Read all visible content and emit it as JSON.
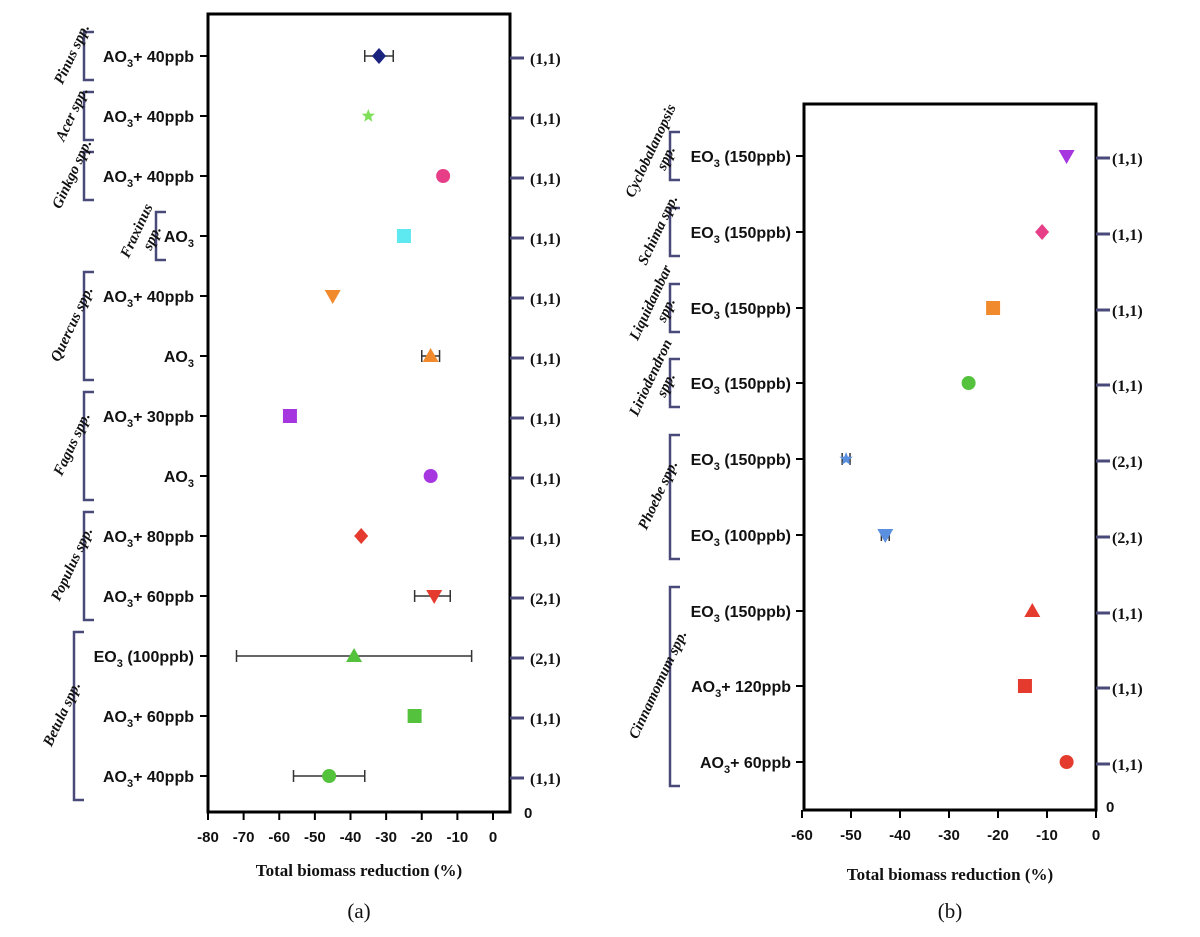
{
  "chart_data": [
    {
      "panel": "(a)",
      "type": "scatter",
      "xlabel": "Total biomass reduction (%)",
      "xlim": [
        -80,
        5
      ],
      "xticks": [
        -80,
        -70,
        -60,
        -50,
        -40,
        -30,
        -20,
        -10,
        0
      ],
      "bottom_right_label": "0",
      "groups": [
        {
          "species": "Pinus spp.",
          "rows": [
            0
          ]
        },
        {
          "species": "Acer spp.",
          "rows": [
            1
          ]
        },
        {
          "species": "Ginkgo spp.",
          "rows": [
            2
          ]
        },
        {
          "species": "Fraxinus spp.",
          "rows": [
            3
          ]
        },
        {
          "species": "Quercus spp.",
          "rows": [
            4,
            5
          ]
        },
        {
          "species": "Fagus spp.",
          "rows": [
            6,
            7
          ]
        },
        {
          "species": "Populus spp.",
          "rows": [
            8,
            9
          ]
        },
        {
          "species": "Betula spp.",
          "rows": [
            10,
            11,
            12
          ]
        }
      ],
      "points": [
        {
          "treatment": "AO₃+ 40ppb",
          "value": -32,
          "err_low": -36,
          "err_high": -28,
          "marker": "diamond",
          "color": "#1a237e",
          "right_label": "(1,1)"
        },
        {
          "treatment": "AO₃+ 40ppb",
          "value": -35,
          "marker": "star",
          "color": "#7fe05a",
          "right_label": "(1,1)"
        },
        {
          "treatment": "AO₃+ 40ppb",
          "value": -14,
          "marker": "circle",
          "color": "#e63e87",
          "right_label": "(1,1)"
        },
        {
          "treatment": "AO₃",
          "value": -25,
          "marker": "square",
          "color": "#5ee8ef",
          "right_label": "(1,1)"
        },
        {
          "treatment": "AO₃+ 40ppb",
          "value": -45,
          "marker": "triangle-down",
          "color": "#f08a2c",
          "right_label": "(1,1)"
        },
        {
          "treatment": "AO₃",
          "value": -17.5,
          "err_low": -20,
          "err_high": -15,
          "marker": "triangle-up",
          "color": "#f08a2c",
          "right_label": "(1,1)"
        },
        {
          "treatment": "AO₃+ 30ppb",
          "value": -57,
          "marker": "square",
          "color": "#a637e0",
          "right_label": "(1,1)"
        },
        {
          "treatment": "AO₃",
          "value": -17.5,
          "marker": "circle",
          "color": "#a637e0",
          "right_label": "(1,1)"
        },
        {
          "treatment": "AO₃+ 80ppb",
          "value": -37,
          "marker": "diamond",
          "color": "#e53b2e",
          "right_label": "(1,1)"
        },
        {
          "treatment": "AO₃+ 60ppb",
          "value": -16.5,
          "err_low": -22,
          "err_high": -12,
          "marker": "triangle-down",
          "color": "#e53b2e",
          "right_label": "(2,1)"
        },
        {
          "treatment": "EO₃ (100ppb)",
          "value": -39,
          "err_low": -72,
          "err_high": -6,
          "marker": "triangle-up",
          "color": "#55c23e",
          "right_label": "(2,1)"
        },
        {
          "treatment": "AO₃+ 60ppb",
          "value": -22,
          "marker": "square",
          "color": "#55c23e",
          "right_label": "(1,1)"
        },
        {
          "treatment": "AO₃+ 40ppb",
          "value": -46,
          "err_low": -56,
          "err_high": -36,
          "marker": "circle",
          "color": "#55c23e",
          "right_label": "(1,1)"
        }
      ]
    },
    {
      "panel": "(b)",
      "type": "scatter",
      "xlabel": "Total biomass reduction (%)",
      "xlim": [
        -60,
        0
      ],
      "xticks": [
        -60,
        -50,
        -40,
        -30,
        -20,
        -10,
        0
      ],
      "bottom_right_label": "0",
      "groups": [
        {
          "species": "Cyclobalanopsis spp.",
          "rows": [
            0
          ]
        },
        {
          "species": "Schima spp.",
          "rows": [
            1
          ]
        },
        {
          "species": "Liquidambar spp.",
          "rows": [
            2
          ]
        },
        {
          "species": "Liriodendron spp.",
          "rows": [
            3
          ]
        },
        {
          "species": "Phoebe spp.",
          "rows": [
            4,
            5
          ]
        },
        {
          "species": "Cinnamomum spp.",
          "rows": [
            6,
            7,
            8
          ]
        }
      ],
      "points": [
        {
          "treatment": "EO₃ (150ppb)",
          "value": -6,
          "marker": "triangle-down",
          "color": "#a637e0",
          "right_label": "(1,1)"
        },
        {
          "treatment": "EO₃ (150ppb)",
          "value": -11,
          "marker": "diamond",
          "color": "#e63e87",
          "right_label": "(1,1)"
        },
        {
          "treatment": "EO₃ (150ppb)",
          "value": -21,
          "marker": "square",
          "color": "#f08a2c",
          "right_label": "(1,1)"
        },
        {
          "treatment": "EO₃ (150ppb)",
          "value": -26,
          "marker": "circle",
          "color": "#55c23e",
          "right_label": "(1,1)"
        },
        {
          "treatment": "EO₃ (150ppb)",
          "value": -51,
          "err_low": -51.8,
          "err_high": -50.2,
          "marker": "star",
          "color": "#5b8fe0",
          "right_label": "(2,1)"
        },
        {
          "treatment": "EO₃ (100ppb)",
          "value": -43,
          "err_low": -43.8,
          "err_high": -42.2,
          "marker": "triangle-down",
          "color": "#5b8fe0",
          "right_label": "(2,1)"
        },
        {
          "treatment": "EO₃ (150ppb)",
          "value": -13,
          "marker": "triangle-up",
          "color": "#e53b2e",
          "right_label": "(1,1)"
        },
        {
          "treatment": "AO₃+ 120ppb",
          "value": -14.5,
          "marker": "square",
          "color": "#e53b2e",
          "right_label": "(1,1)"
        },
        {
          "treatment": "AO₃+ 60ppb",
          "value": -6,
          "marker": "circle",
          "color": "#e53b2e",
          "right_label": "(1,1)"
        }
      ]
    }
  ]
}
